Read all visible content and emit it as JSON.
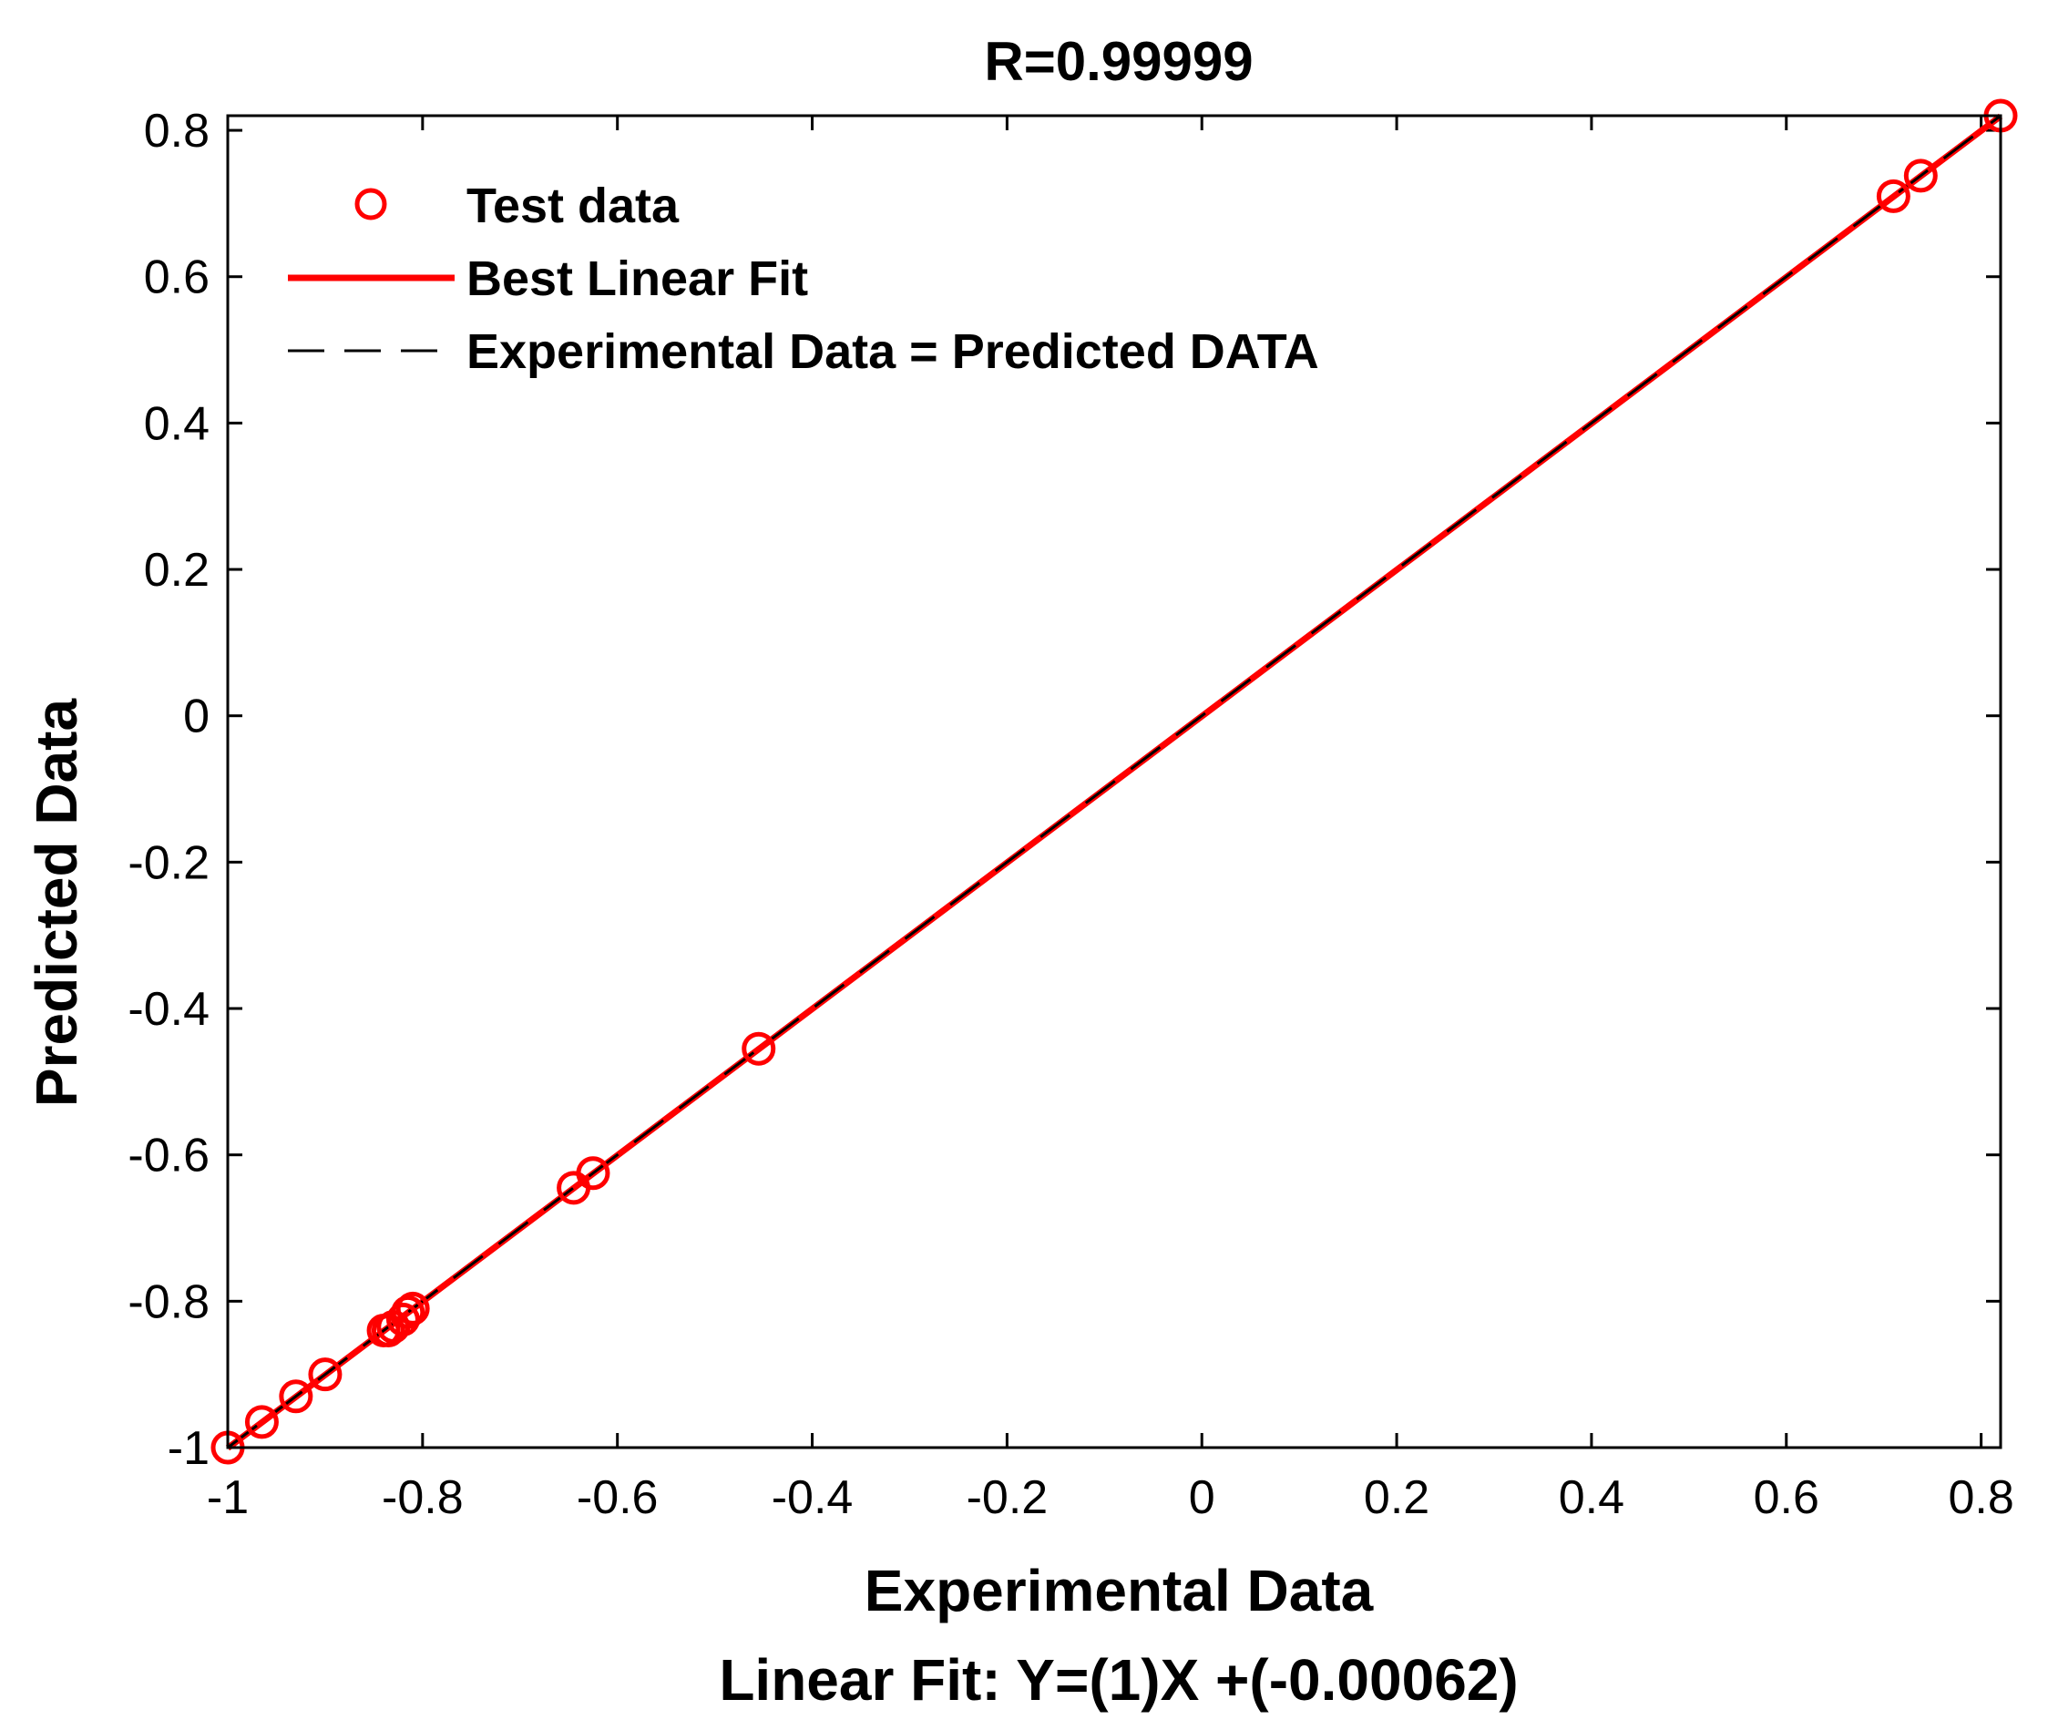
{
  "chart_data": {
    "type": "scatter",
    "title": "R=0.99999",
    "xlabel": "Experimental Data",
    "ylabel": "Predicted Data",
    "fit_equation": "Linear Fit: Y=(1)X +(-0.00062)",
    "xlim": [
      -1,
      0.82
    ],
    "ylim": [
      -1,
      0.82
    ],
    "x_ticks": [
      -1,
      -0.8,
      -0.6,
      -0.4,
      -0.2,
      0,
      0.2,
      0.4,
      0.6,
      0.8
    ],
    "x_tick_labels": [
      "-1",
      "-0.8",
      "-0.6",
      "-0.4",
      "-0.2",
      "0",
      "0.2",
      "0.4",
      "0.6",
      "0.8"
    ],
    "y_ticks": [
      -1,
      -0.8,
      -0.6,
      -0.4,
      -0.2,
      0,
      0.2,
      0.4,
      0.6,
      0.8
    ],
    "y_tick_labels": [
      "-1",
      "-0.8",
      "-0.6",
      "-0.4",
      "-0.2",
      "0",
      "0.2",
      "0.4",
      "0.6",
      "0.8"
    ],
    "legend_position": "top-left",
    "grid": false,
    "series": [
      {
        "name": "Test data",
        "kind": "points",
        "marker": "open-circle",
        "color": "#ff0000",
        "x": [
          -1.0,
          -0.965,
          -0.93,
          -0.9,
          -0.84,
          -0.835,
          -0.83,
          -0.82,
          -0.815,
          -0.81,
          -0.645,
          -0.625,
          -0.455,
          0.71,
          0.738,
          0.82
        ],
        "y": [
          -1.0,
          -0.965,
          -0.93,
          -0.9,
          -0.84,
          -0.84,
          -0.835,
          -0.825,
          -0.815,
          -0.81,
          -0.645,
          -0.625,
          -0.455,
          0.71,
          0.738,
          0.82
        ]
      },
      {
        "name": "Best Linear Fit",
        "kind": "line",
        "line_style": "solid",
        "color": "#ff0000",
        "slope": 1,
        "intercept": -0.00062
      },
      {
        "name": "Experimental Data = Predicted DATA",
        "kind": "line",
        "line_style": "dashed",
        "color": "#000000",
        "slope": 1,
        "intercept": 0
      }
    ]
  }
}
